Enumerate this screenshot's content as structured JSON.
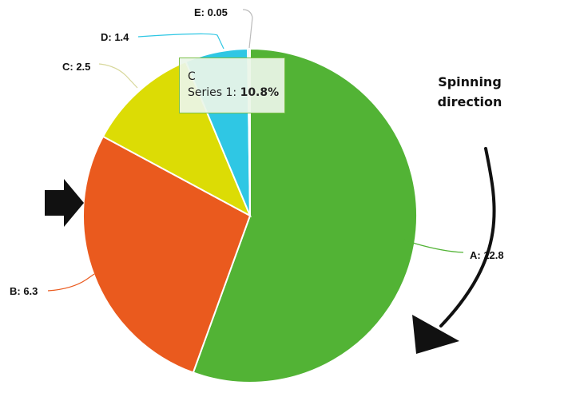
{
  "chart_data": {
    "type": "pie",
    "categories": [
      "A",
      "B",
      "C",
      "D",
      "E"
    ],
    "series": [
      {
        "name": "Series 1",
        "values": [
          12.8,
          6.3,
          2.5,
          1.4,
          0.05
        ]
      }
    ],
    "labels": [
      "A: 12.8",
      "B: 6.3",
      "C: 2.5",
      "D: 1.4",
      "E: 0.05"
    ],
    "colors": [
      "#52b335",
      "#ea5a1e",
      "#dcdc05",
      "#2fc7e4",
      "#f0f0f0"
    ],
    "title": "",
    "tooltip": {
      "category": "C",
      "series_label": "Series 1: ",
      "percent": "10.8%"
    },
    "annotation": {
      "lines": [
        "Spinning",
        "direction"
      ]
    }
  }
}
